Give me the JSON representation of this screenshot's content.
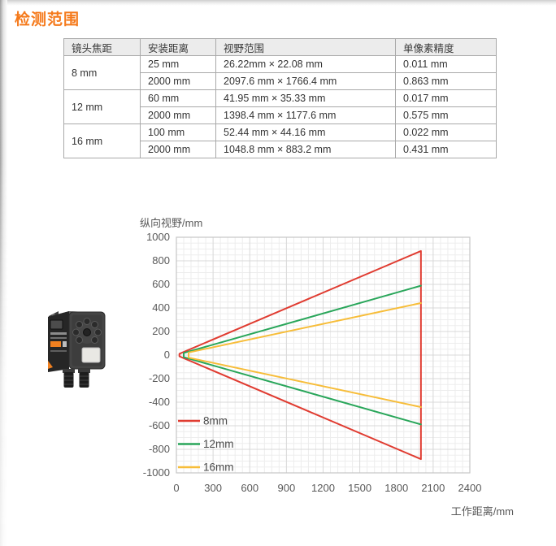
{
  "title": "检测范围",
  "accent_color": "#f5791a",
  "table": {
    "headers": [
      "镜头焦距",
      "安装距离",
      "视野范围",
      "单像素精度"
    ],
    "groups": [
      {
        "focal": "8 mm",
        "rows": [
          [
            "25 mm",
            "26.22mm × 22.08 mm",
            "0.011 mm"
          ],
          [
            "2000 mm",
            "2097.6 mm × 1766.4 mm",
            "0.863 mm"
          ]
        ]
      },
      {
        "focal": "12 mm",
        "rows": [
          [
            "60 mm",
            "41.95 mm × 35.33 mm",
            "0.017 mm"
          ],
          [
            "2000 mm",
            "1398.4 mm × 1177.6 mm",
            "0.575 mm"
          ]
        ]
      },
      {
        "focal": "16 mm",
        "rows": [
          [
            "100 mm",
            "52.44 mm × 44.16 mm",
            "0.022 mm"
          ],
          [
            "2000 mm",
            "1048.8 mm × 883.2 mm",
            "0.431 mm"
          ]
        ]
      }
    ]
  },
  "chart_data": {
    "type": "line",
    "title": "",
    "xlabel": "工作距离/mm",
    "ylabel": "纵向视野/mm",
    "xlim": [
      0,
      2400
    ],
    "ylim": [
      -1000,
      1000
    ],
    "xticks": [
      0,
      300,
      600,
      900,
      1200,
      1500,
      1800,
      2100,
      2400
    ],
    "yticks": [
      -1000,
      -800,
      -600,
      -400,
      -200,
      0,
      200,
      400,
      600,
      800,
      1000
    ],
    "grid": true,
    "grid_minor": {
      "x": 60,
      "y": 50
    },
    "legend_position": "inside-bottom-left",
    "series": [
      {
        "name": "8mm",
        "color": "#e03c31",
        "x_near": 25,
        "half_fov_near": 11.04,
        "x_far": 2000,
        "half_fov_far": 883.2,
        "closed_at_far": true
      },
      {
        "name": "12mm",
        "color": "#29a65a",
        "x_near": 60,
        "half_fov_near": 17.67,
        "x_far": 2000,
        "half_fov_far": 588.8,
        "closed_at_far": false
      },
      {
        "name": "16mm",
        "color": "#f7bd39",
        "x_near": 100,
        "half_fov_near": 22.08,
        "x_far": 2000,
        "half_fov_far": 441.6,
        "closed_at_far": false
      }
    ]
  },
  "images": {
    "sensor_photo": "vision-sensor-product-photo"
  },
  "colors": {
    "grid_minor": "#ededed",
    "grid_major": "#d8d8d8",
    "plot_border": "#c6c6c6",
    "axis_text": "#595959",
    "table_border": "#a9a9a9",
    "table_header_bg": "#ececec"
  }
}
